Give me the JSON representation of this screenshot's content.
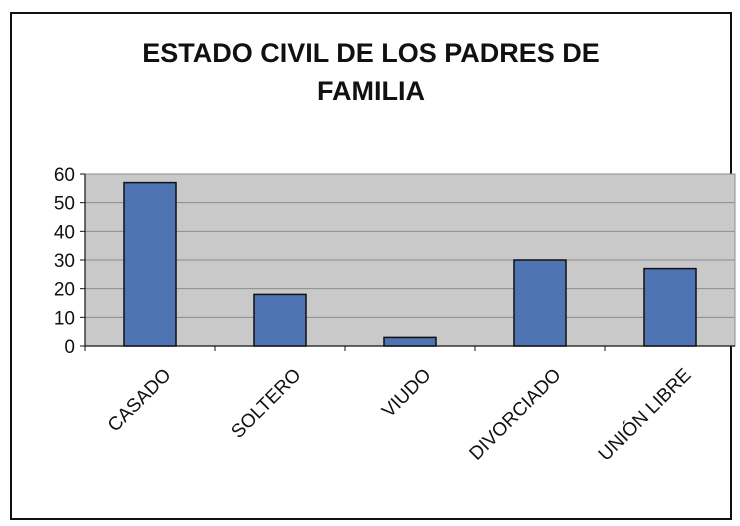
{
  "chart_data": {
    "type": "bar",
    "title_lines": [
      "ESTADO CIVIL DE LOS PADRES DE",
      "FAMILIA"
    ],
    "categories": [
      "CASADO",
      "SOLTERO",
      "VIUDO",
      "DIVORCIADO",
      "UNIÓN LIBRE"
    ],
    "values": [
      57,
      18,
      3,
      30,
      27
    ],
    "ylim": [
      0,
      60
    ],
    "yticks": [
      0,
      10,
      20,
      30,
      40,
      50,
      60
    ],
    "xlabel": "",
    "ylabel": "",
    "grid": true,
    "legend": "none",
    "colors": {
      "bar_fill": "#4f74b3",
      "bar_stroke": "#111111",
      "plot_background": "#c9c9c9",
      "gridline": "#8c8c8c"
    }
  }
}
